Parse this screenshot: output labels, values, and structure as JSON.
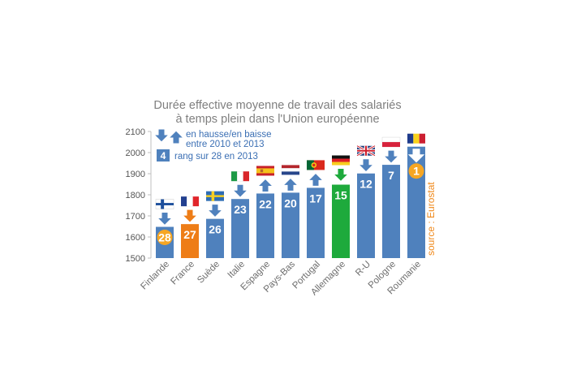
{
  "chart_data": {
    "type": "bar",
    "title_lines": [
      "Durée effective moyenne de travail des salariés",
      "à temps plein dans l'Union européenne"
    ],
    "yticks": [
      "1500",
      "1600",
      "1700",
      "1800",
      "1900",
      "2000",
      "2100"
    ],
    "ylim": [
      1500,
      2100
    ],
    "grid": false,
    "categories": [
      "Finlande",
      "France",
      "Suède",
      "Italie",
      "Espagne",
      "Pays-Bas",
      "Portugal",
      "Allemagne",
      "R-U",
      "Pologne",
      "Roumanie"
    ],
    "values": [
      1648,
      1661,
      1686,
      1780,
      1806,
      1810,
      1833,
      1848,
      1901,
      1942,
      2028
    ],
    "ranks": [
      "28",
      "27",
      "26",
      "23",
      "22",
      "20",
      "17",
      "15",
      "12",
      "7",
      "1"
    ],
    "trend": [
      "down",
      "down",
      "down",
      "down",
      "up",
      "up",
      "up",
      "down",
      "down",
      "down",
      "down"
    ],
    "rank_style": [
      "circle",
      "plain",
      "plain",
      "plain",
      "plain",
      "plain",
      "plain",
      "plain",
      "plain",
      "plain",
      "circle"
    ],
    "flags": [
      "finland",
      "france",
      "sweden",
      "italy",
      "spain",
      "netherlands",
      "portugal",
      "germany",
      "uk",
      "poland",
      "romania"
    ],
    "legend": {
      "line1": "en hausse/en baisse",
      "line2": "entre 2010 et 2013",
      "rank_example": "4",
      "rank_text": "rang sur 28 en 2013"
    },
    "source": "source : Eurostat",
    "colors": {
      "bar": "#4f81bd",
      "bar_highlight_france": "#ee7d17",
      "bar_highlight_germany": "#1eaa3c",
      "arrow": "#4f81bd",
      "circle": "#f6a623",
      "source": "#f08a1d",
      "legend_text": "#3b6fb4"
    }
  }
}
